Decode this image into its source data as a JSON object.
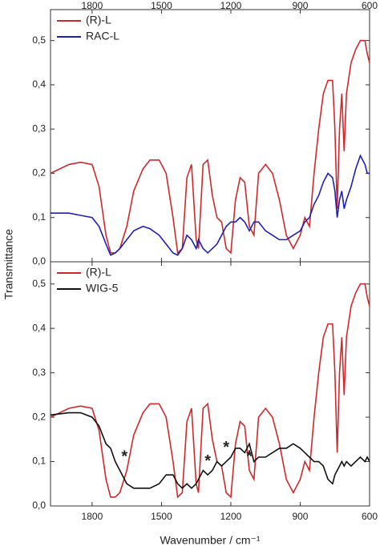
{
  "chart_data": [
    {
      "type": "line",
      "ylabel": "Transmittance",
      "x": [
        1980,
        1900,
        1850,
        1800,
        1770,
        1740,
        1720,
        1700,
        1680,
        1650,
        1620,
        1580,
        1550,
        1510,
        1480,
        1450,
        1430,
        1410,
        1390,
        1370,
        1350,
        1340,
        1320,
        1300,
        1280,
        1260,
        1240,
        1220,
        1200,
        1180,
        1160,
        1140,
        1120,
        1100,
        1080,
        1050,
        1020,
        990,
        960,
        930,
        900,
        880,
        860,
        840,
        820,
        800,
        780,
        760,
        750,
        740,
        730,
        720,
        710,
        700,
        680,
        660,
        640,
        620,
        610,
        600
      ],
      "series": [
        {
          "name": "(R)-L",
          "color": "#d0282a",
          "values": [
            0.2,
            0.22,
            0.225,
            0.22,
            0.17,
            0.06,
            0.02,
            0.02,
            0.03,
            0.08,
            0.16,
            0.21,
            0.23,
            0.23,
            0.2,
            0.1,
            0.02,
            0.03,
            0.19,
            0.22,
            0.05,
            0.03,
            0.22,
            0.23,
            0.15,
            0.1,
            0.09,
            0.03,
            0.02,
            0.14,
            0.19,
            0.18,
            0.08,
            0.06,
            0.2,
            0.22,
            0.2,
            0.14,
            0.06,
            0.03,
            0.06,
            0.1,
            0.08,
            0.2,
            0.3,
            0.38,
            0.41,
            0.41,
            0.3,
            0.12,
            0.3,
            0.38,
            0.25,
            0.38,
            0.45,
            0.48,
            0.5,
            0.5,
            0.47,
            0.45
          ]
        },
        {
          "name": "RAC-L",
          "color": "#1f1fb4",
          "values": [
            0.11,
            0.11,
            0.105,
            0.1,
            0.08,
            0.04,
            0.015,
            0.02,
            0.03,
            0.05,
            0.07,
            0.08,
            0.075,
            0.06,
            0.04,
            0.02,
            0.015,
            0.03,
            0.06,
            0.05,
            0.03,
            0.05,
            0.03,
            0.02,
            0.03,
            0.04,
            0.06,
            0.08,
            0.09,
            0.09,
            0.1,
            0.09,
            0.07,
            0.09,
            0.09,
            0.07,
            0.06,
            0.05,
            0.05,
            0.06,
            0.07,
            0.09,
            0.1,
            0.13,
            0.15,
            0.18,
            0.2,
            0.19,
            0.16,
            0.1,
            0.14,
            0.16,
            0.12,
            0.14,
            0.17,
            0.21,
            0.24,
            0.22,
            0.2,
            0.2
          ]
        }
      ],
      "xlim": [
        1980,
        600
      ],
      "xticks": [
        1800,
        1500,
        1200,
        900,
        600
      ],
      "ylim": [
        0,
        0.57
      ],
      "yticks": [
        {
          "value": 0,
          "label": "0,0"
        },
        {
          "value": 0.1,
          "label": "0,1"
        },
        {
          "value": 0.2,
          "label": "0,2"
        },
        {
          "value": 0.3,
          "label": "0,3"
        },
        {
          "value": 0.4,
          "label": "0,4"
        },
        {
          "value": 0.5,
          "label": "0,5"
        }
      ],
      "legend": "upper left"
    },
    {
      "type": "line",
      "xlabel": "Wavenumber / cm⁻¹",
      "x": [
        1980,
        1900,
        1850,
        1800,
        1770,
        1740,
        1720,
        1700,
        1680,
        1650,
        1620,
        1580,
        1550,
        1510,
        1480,
        1450,
        1430,
        1410,
        1390,
        1370,
        1350,
        1340,
        1320,
        1300,
        1280,
        1260,
        1240,
        1220,
        1200,
        1180,
        1160,
        1140,
        1120,
        1100,
        1080,
        1050,
        1020,
        990,
        960,
        930,
        900,
        880,
        860,
        840,
        820,
        800,
        780,
        760,
        750,
        740,
        730,
        720,
        710,
        700,
        680,
        660,
        640,
        620,
        610,
        600
      ],
      "series": [
        {
          "name": "(R)-L",
          "color": "#d0282a",
          "values": [
            0.2,
            0.22,
            0.225,
            0.22,
            0.17,
            0.06,
            0.02,
            0.02,
            0.03,
            0.08,
            0.16,
            0.21,
            0.23,
            0.23,
            0.2,
            0.1,
            0.02,
            0.03,
            0.19,
            0.22,
            0.05,
            0.03,
            0.22,
            0.23,
            0.15,
            0.1,
            0.09,
            0.03,
            0.02,
            0.14,
            0.19,
            0.18,
            0.08,
            0.06,
            0.2,
            0.22,
            0.2,
            0.14,
            0.06,
            0.03,
            0.06,
            0.1,
            0.08,
            0.2,
            0.3,
            0.38,
            0.41,
            0.41,
            0.3,
            0.12,
            0.3,
            0.38,
            0.25,
            0.38,
            0.45,
            0.48,
            0.5,
            0.5,
            0.47,
            0.45
          ]
        },
        {
          "name": "WIG-5",
          "color": "#111111",
          "values": [
            0.205,
            0.21,
            0.21,
            0.2,
            0.18,
            0.14,
            0.13,
            0.1,
            0.08,
            0.05,
            0.04,
            0.04,
            0.04,
            0.05,
            0.07,
            0.07,
            0.05,
            0.04,
            0.05,
            0.04,
            0.05,
            0.06,
            0.08,
            0.07,
            0.08,
            0.1,
            0.09,
            0.1,
            0.11,
            0.13,
            0.13,
            0.12,
            0.14,
            0.1,
            0.11,
            0.11,
            0.12,
            0.13,
            0.13,
            0.14,
            0.13,
            0.12,
            0.11,
            0.1,
            0.1,
            0.09,
            0.06,
            0.05,
            0.07,
            0.08,
            0.09,
            0.1,
            0.09,
            0.1,
            0.09,
            0.1,
            0.11,
            0.1,
            0.11,
            0.1
          ]
        }
      ],
      "xlim": [
        1980,
        600
      ],
      "xticks": [
        1800,
        1500,
        1200,
        900,
        600
      ],
      "ylim": [
        0,
        0.55
      ],
      "yticks": [
        {
          "value": 0,
          "label": "0,0"
        },
        {
          "value": 0.1,
          "label": "0,1"
        },
        {
          "value": 0.2,
          "label": "0,2"
        },
        {
          "value": 0.3,
          "label": "0,3"
        },
        {
          "value": 0.4,
          "label": "0,4"
        },
        {
          "value": 0.5,
          "label": "0,5"
        }
      ],
      "annotations": [
        {
          "text": "*",
          "x": 1660,
          "y": 0.11
        },
        {
          "text": "*",
          "x": 1300,
          "y": 0.1
        },
        {
          "text": "*",
          "x": 1220,
          "y": 0.13
        },
        {
          "text": "*",
          "x": 1120,
          "y": 0.11
        }
      ],
      "legend": "upper left"
    }
  ]
}
